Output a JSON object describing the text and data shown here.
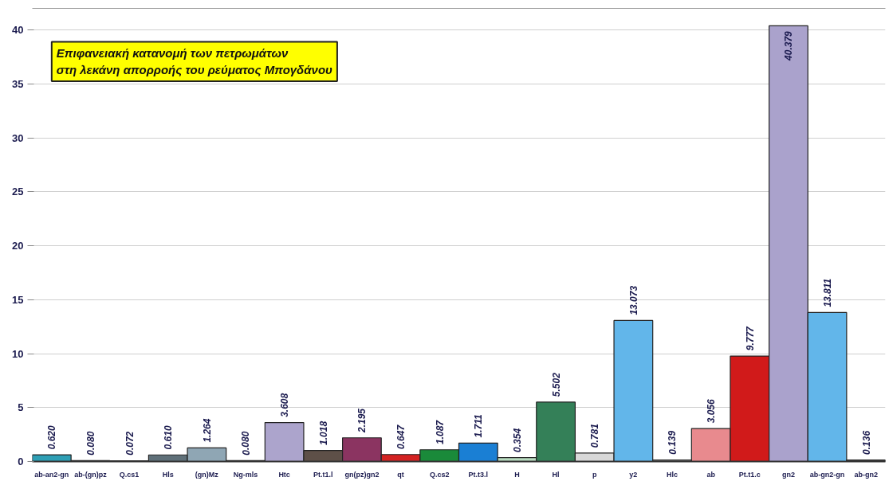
{
  "chart_data": {
    "type": "bar",
    "title": "Επιφανειακή κατανομή των πετρωμάτων\nστη λεκάνη απορροής του ρεύματος Μπογδάνου",
    "categories": [
      "ab-an2-gn",
      "ab-(gn)pz",
      "Q.cs1",
      "Hls",
      "(gn)Mz",
      "Ng-mls",
      "Htc",
      "Pt.t1.l",
      "gn(pz)gn2",
      "qt",
      "Q.cs2",
      "Pt.t3.l",
      "H",
      "Hl",
      "p",
      "y2",
      "Hlc",
      "ab",
      "Pt.t1.c",
      "gn2",
      "ab-gn2-gn",
      "ab-gn2"
    ],
    "values": [
      0.62,
      0.08,
      0.072,
      0.61,
      1.264,
      0.08,
      3.608,
      1.018,
      2.195,
      0.647,
      1.087,
      1.711,
      0.354,
      5.502,
      0.781,
      13.073,
      0.139,
      3.056,
      9.777,
      40.379,
      13.811,
      0.136
    ],
    "colors": [
      "#2e9fb5",
      "#333333",
      "#333333",
      "#5f7079",
      "#8fa6b4",
      "#333333",
      "#aca4cc",
      "#5e5048",
      "#8b3461",
      "#d42222",
      "#1a8a3a",
      "#1a7fd4",
      "#b8dcc0",
      "#348058",
      "#d8d8d8",
      "#62b6ea",
      "#999999",
      "#e88a8e",
      "#d11a1a",
      "#aaa2cc",
      "#62b6ea",
      "#555555"
    ],
    "value_labels": [
      "0.620",
      "0.080",
      "0.072",
      "0.610",
      "1.264",
      "0.080",
      "3.608",
      "1.018",
      "2.195",
      "0.647",
      "1.087",
      "1.711",
      "0.354",
      "5.502",
      "0.781",
      "13.073",
      "0.139",
      "3.056",
      "9.777",
      "40.379",
      "13.811",
      "0.136"
    ],
    "ylim": [
      0,
      42
    ],
    "yticks": [
      0,
      5,
      10,
      15,
      20,
      25,
      30,
      35,
      40
    ],
    "grid": "y"
  }
}
